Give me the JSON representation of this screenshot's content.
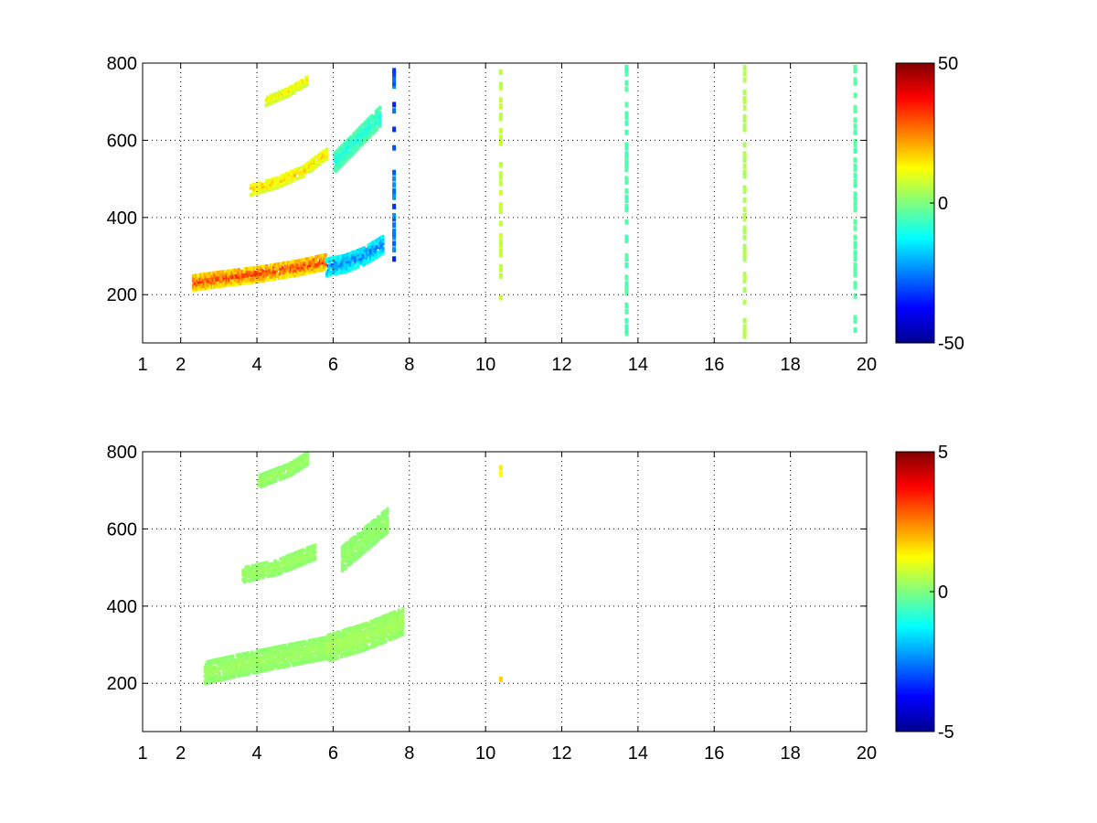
{
  "chart_data": [
    {
      "type": "heatmap",
      "title": "",
      "xlabel": "",
      "ylabel": "",
      "xlim": [
        1,
        20
      ],
      "ylim": [
        75,
        800
      ],
      "x_ticks": [
        1,
        2,
        4,
        6,
        8,
        10,
        12,
        14,
        16,
        18,
        20
      ],
      "y_ticks": [
        200,
        400,
        600,
        800
      ],
      "grid": true,
      "colormap": "jet",
      "colorbar": {
        "min": -50,
        "max": 50,
        "ticks": [
          50,
          0,
          -50
        ]
      },
      "features": [
        {
          "kind": "band",
          "x": [
            2.3,
            3.0,
            4.0,
            5.0,
            5.8
          ],
          "y": [
            230,
            240,
            252,
            268,
            285
          ],
          "width": 40,
          "value": 38
        },
        {
          "kind": "band",
          "x": [
            5.8,
            6.3,
            6.8,
            7.3
          ],
          "y": [
            270,
            280,
            300,
            330
          ],
          "width": 45,
          "value": -30
        },
        {
          "kind": "band",
          "x": [
            3.8,
            4.5,
            5.2,
            5.8
          ],
          "y": [
            470,
            490,
            520,
            565
          ],
          "width": 28,
          "value": 22
        },
        {
          "kind": "band",
          "x": [
            4.2,
            4.8,
            5.3
          ],
          "y": [
            700,
            725,
            755
          ],
          "width": 22,
          "value": 18
        },
        {
          "kind": "band",
          "x": [
            6.0,
            6.6,
            7.2
          ],
          "y": [
            540,
            600,
            660
          ],
          "width": 50,
          "value": -12
        },
        {
          "kind": "column",
          "x": 7.6,
          "y": [
            290,
            780
          ],
          "value": -35
        },
        {
          "kind": "column",
          "x": 10.4,
          "y": [
            190,
            780
          ],
          "value": 8
        },
        {
          "kind": "column",
          "x": 13.7,
          "y": [
            90,
            790
          ],
          "value": -6
        },
        {
          "kind": "column",
          "x": 16.8,
          "y": [
            90,
            790
          ],
          "value": 6
        },
        {
          "kind": "column",
          "x": 19.7,
          "y": [
            90,
            790
          ],
          "value": -5
        }
      ]
    },
    {
      "type": "heatmap",
      "title": "",
      "xlabel": "",
      "ylabel": "",
      "xlim": [
        1,
        20
      ],
      "ylim": [
        75,
        800
      ],
      "x_ticks": [
        1,
        2,
        4,
        6,
        8,
        10,
        12,
        14,
        16,
        18,
        20
      ],
      "y_ticks": [
        200,
        400,
        600,
        800
      ],
      "grid": true,
      "colormap": "jet",
      "colorbar": {
        "min": -5,
        "max": 5,
        "ticks": [
          5,
          0,
          -5
        ]
      },
      "features": [
        {
          "kind": "band",
          "x": [
            2.6,
            3.5,
            4.5,
            5.8
          ],
          "y": [
            225,
            245,
            265,
            290
          ],
          "width": 55,
          "value": 0.4
        },
        {
          "kind": "band",
          "x": [
            5.8,
            6.8,
            7.8
          ],
          "y": [
            290,
            320,
            360
          ],
          "width": 70,
          "value": 0.5
        },
        {
          "kind": "band",
          "x": [
            3.6,
            4.5,
            5.5
          ],
          "y": [
            480,
            500,
            540
          ],
          "width": 40,
          "value": 0.4
        },
        {
          "kind": "band",
          "x": [
            4.0,
            4.8,
            5.3
          ],
          "y": [
            720,
            750,
            780
          ],
          "width": 30,
          "value": 0.4
        },
        {
          "kind": "band",
          "x": [
            6.2,
            6.8,
            7.4
          ],
          "y": [
            520,
            570,
            620
          ],
          "width": 60,
          "value": 0.3
        },
        {
          "kind": "column",
          "x": 10.4,
          "y": [
            200,
            220
          ],
          "value": 2.5
        },
        {
          "kind": "column",
          "x": 10.4,
          "y": [
            740,
            770
          ],
          "value": 1.5
        }
      ]
    }
  ]
}
